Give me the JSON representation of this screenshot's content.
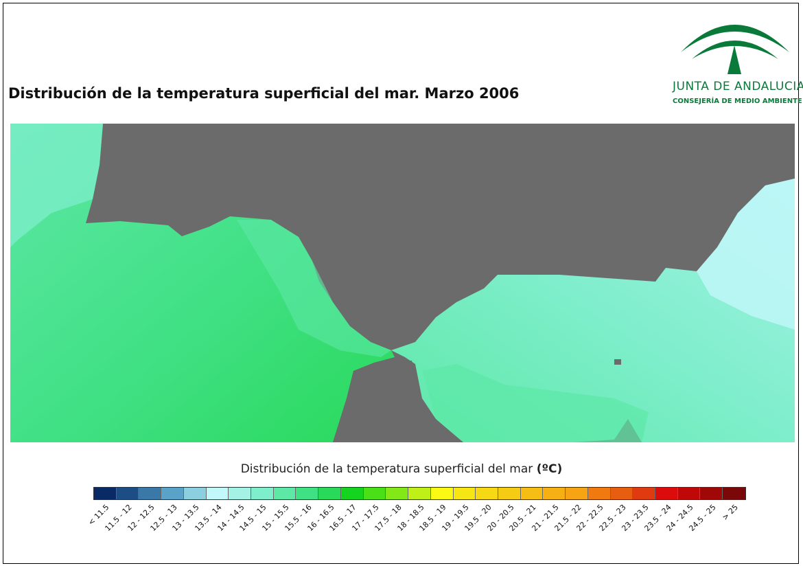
{
  "title": "Distribución de la temperatura superficial del mar. Marzo 2006",
  "logo": {
    "name": "JUNTA DE ANDALUCIA",
    "subtitle": "CONSEJERÍA DE MEDIO AMBIENTE",
    "color": "#0a7a3a"
  },
  "map": {
    "land_color": "#6b6b6b",
    "region": "Estrecho de Gibraltar"
  },
  "legend": {
    "title": "Distribución de la temperatura superficial del mar",
    "unit": "(ºC)",
    "classes": [
      {
        "label": "< 11.5",
        "color": "#0a2a66"
      },
      {
        "label": "11.5 - 12",
        "color": "#1c4d85"
      },
      {
        "label": "12 - 12.5",
        "color": "#3a78a8"
      },
      {
        "label": "12.5 - 13",
        "color": "#5aa2c8"
      },
      {
        "label": "13 - 13.5",
        "color": "#8cd0e0"
      },
      {
        "label": "13.5 - 14",
        "color": "#c2f8fa"
      },
      {
        "label": "14 - 14.5",
        "color": "#a4f2e6"
      },
      {
        "label": "14.5 - 15",
        "color": "#7eeecb"
      },
      {
        "label": "15 - 15.5",
        "color": "#5de8a6"
      },
      {
        "label": "15.5 - 16",
        "color": "#40e084"
      },
      {
        "label": "16 - 16.5",
        "color": "#29d95a"
      },
      {
        "label": "16.5 - 17",
        "color": "#14d420"
      },
      {
        "label": "17 - 17.5",
        "color": "#4ae018"
      },
      {
        "label": "17.5 - 18",
        "color": "#82e818"
      },
      {
        "label": "18 - 18.5",
        "color": "#bff018"
      },
      {
        "label": "18.5 - 19",
        "color": "#fafa14"
      },
      {
        "label": "19 - 19.5",
        "color": "#f6e614"
      },
      {
        "label": "19.5 - 20",
        "color": "#f6d814"
      },
      {
        "label": "20 - 20.5",
        "color": "#f6cb14"
      },
      {
        "label": "20.5 - 21",
        "color": "#f6bd14"
      },
      {
        "label": "21 - 21.5",
        "color": "#f6b014"
      },
      {
        "label": "21.5 - 22",
        "color": "#f6a314"
      },
      {
        "label": "22 - 22.5",
        "color": "#f07a10"
      },
      {
        "label": "22.5 - 23",
        "color": "#e85e10"
      },
      {
        "label": "23 - 23.5",
        "color": "#e03a10"
      },
      {
        "label": "23.5 - 24",
        "color": "#dc0c0c"
      },
      {
        "label": "24 - 24.5",
        "color": "#c00808"
      },
      {
        "label": "24.5 - 25",
        "color": "#a00808"
      },
      {
        "label": "> 25",
        "color": "#7a0808"
      }
    ]
  }
}
